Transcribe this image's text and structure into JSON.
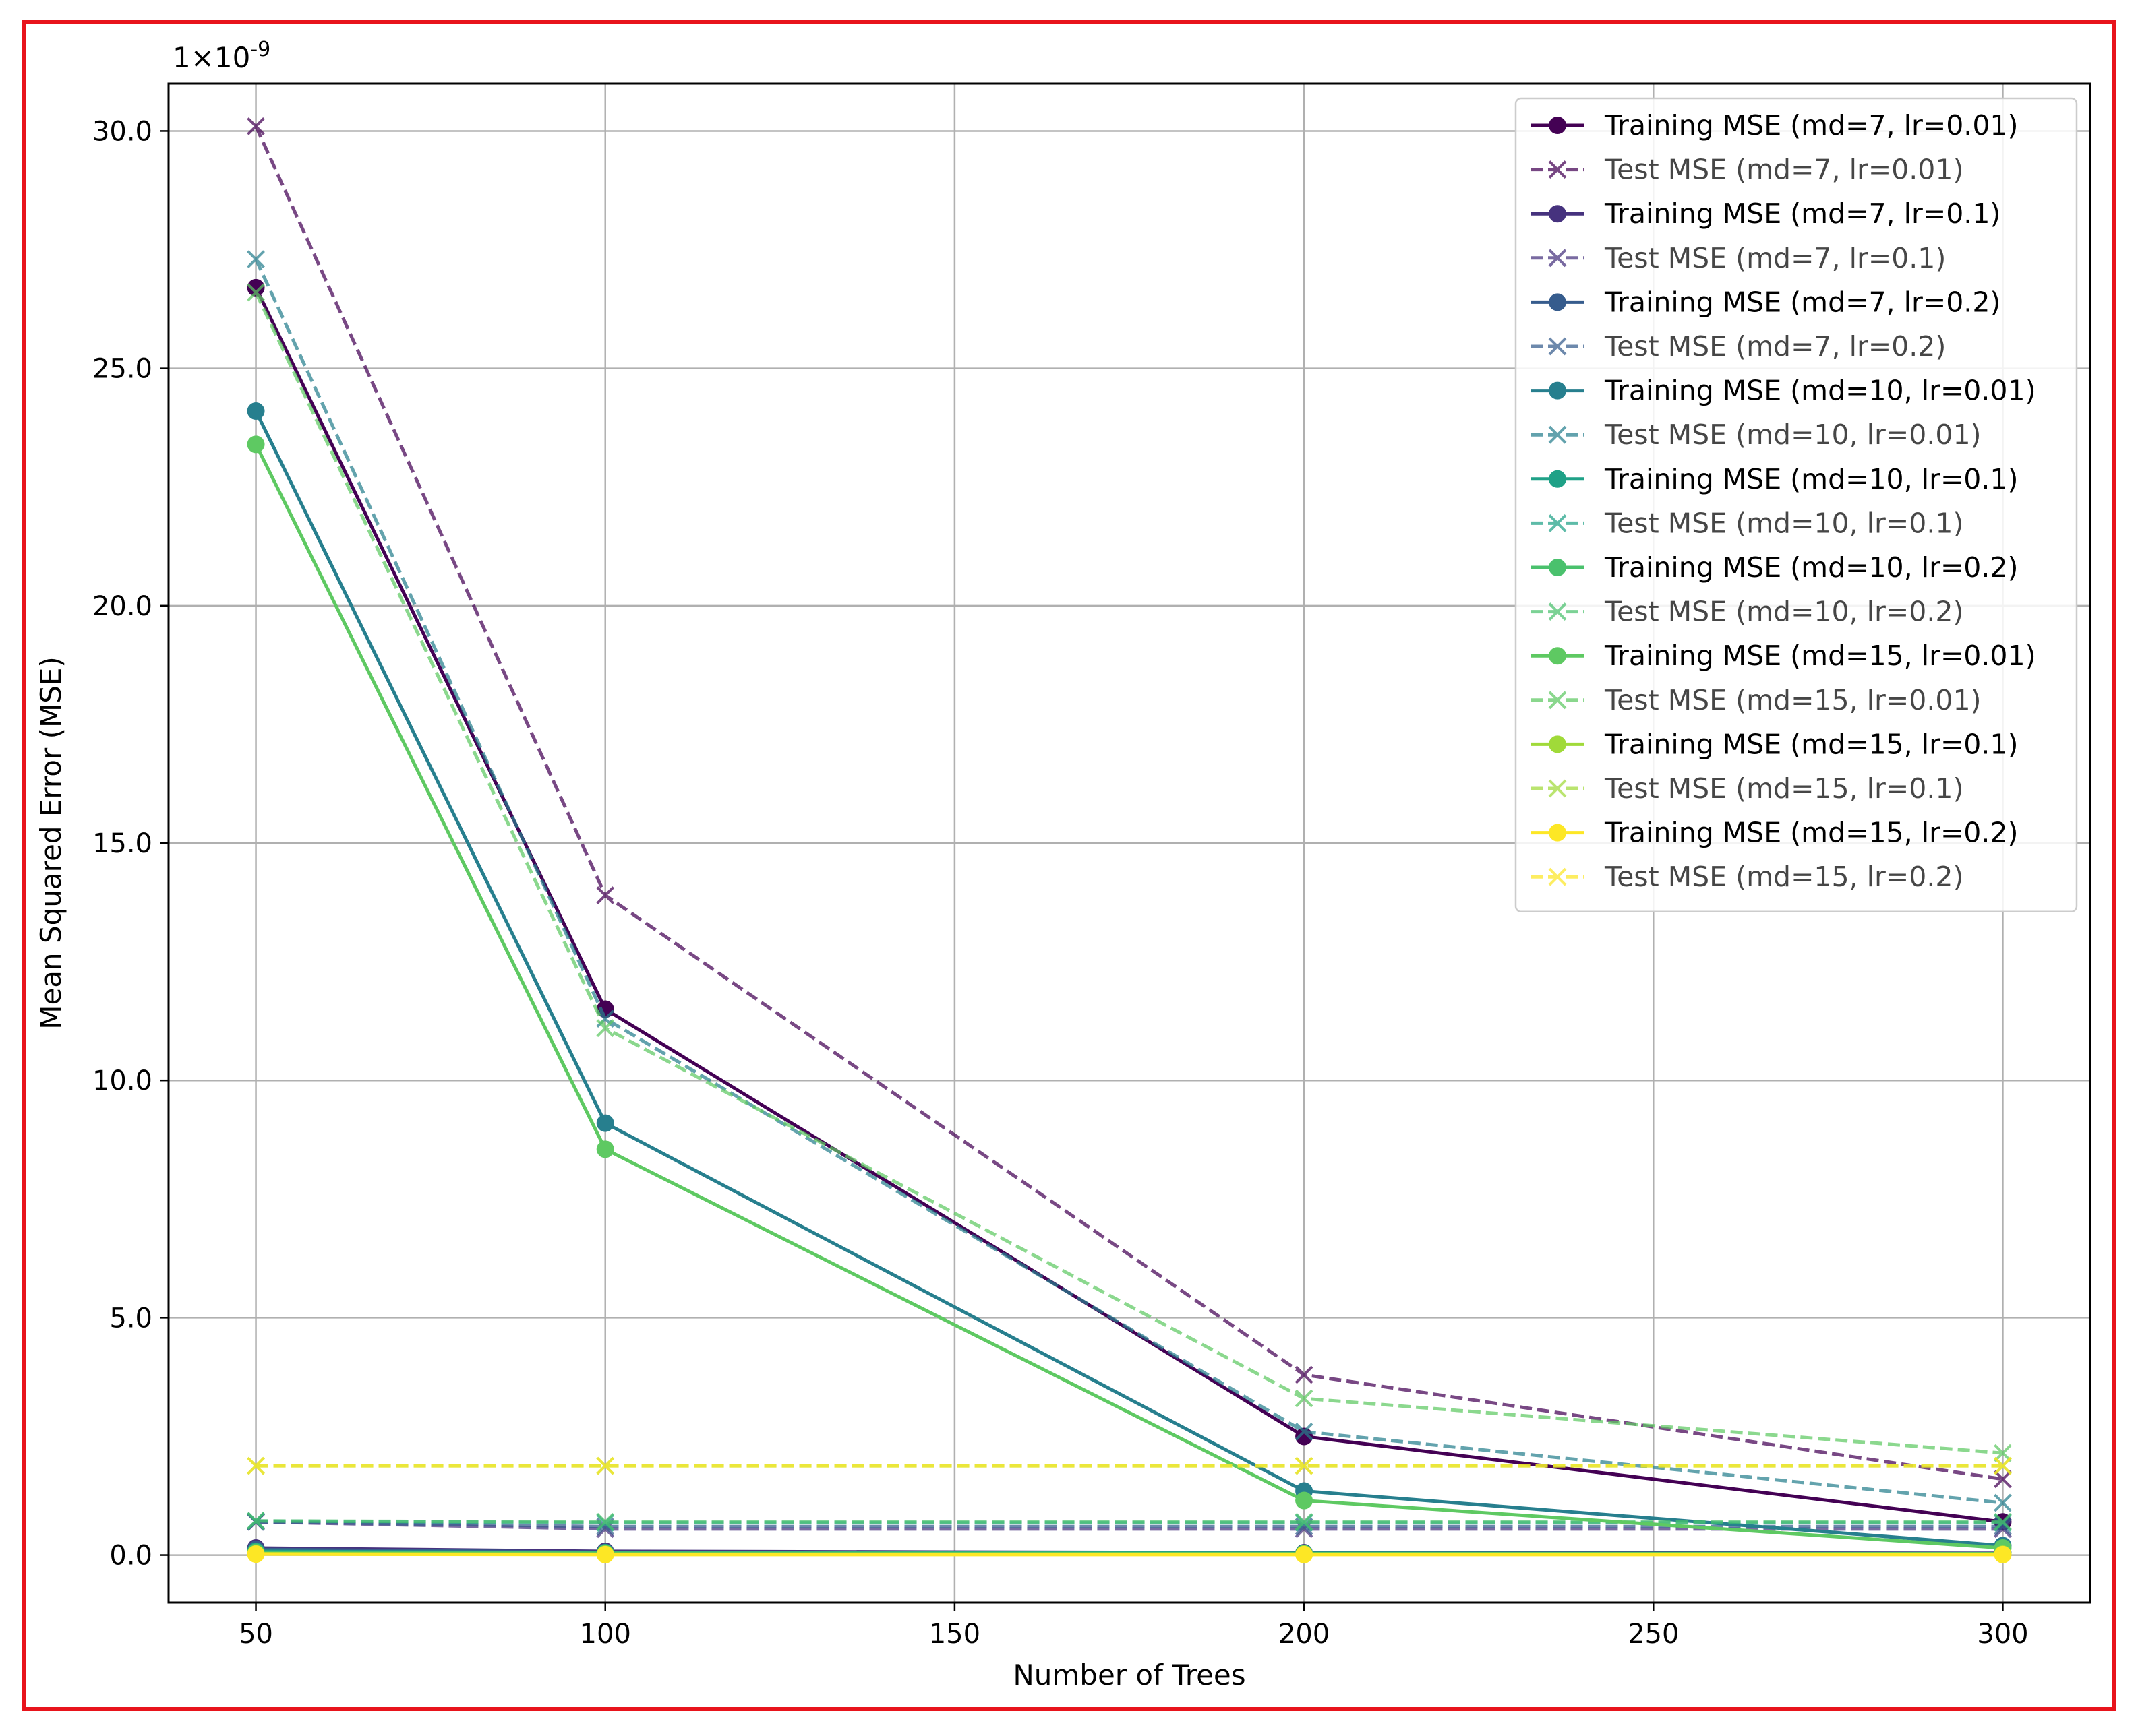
{
  "chart_data": {
    "type": "line",
    "xlabel": "Number of Trees",
    "ylabel": "Mean Squared Error (MSE)",
    "scale_label_base": "1×10",
    "scale_label_exp": "-9",
    "x": [
      50,
      100,
      200,
      300
    ],
    "xlim": [
      37.5,
      312.5
    ],
    "ylim": [
      -1.0,
      31.0
    ],
    "xticks": [
      50,
      100,
      150,
      200,
      250,
      300
    ],
    "xtick_labels": [
      "50",
      "100",
      "150",
      "200",
      "250",
      "300"
    ],
    "yticks": [
      0,
      5,
      10,
      15,
      20,
      25,
      30
    ],
    "ytick_labels": [
      "0.0",
      "5.0",
      "10.0",
      "15.0",
      "20.0",
      "25.0",
      "30.0"
    ],
    "y_scale_factor": "1e-9",
    "grid": true,
    "legend_position": "top-right",
    "series": [
      {
        "name": "Training MSE (md=7, lr=0.01)",
        "color": "#440154",
        "style": "solid",
        "marker": "circle",
        "values": [
          26.7,
          11.5,
          2.5,
          0.7
        ]
      },
      {
        "name": "Test MSE (md=7, lr=0.01)",
        "color": "#440154",
        "style": "dashed",
        "marker": "x",
        "values": [
          30.1,
          13.9,
          3.8,
          1.6
        ]
      },
      {
        "name": "Training MSE (md=7, lr=0.1)",
        "color": "#46327e",
        "style": "solid",
        "marker": "circle",
        "values": [
          0.15,
          0.08,
          0.05,
          0.04
        ]
      },
      {
        "name": "Test MSE (md=7, lr=0.1)",
        "color": "#46327e",
        "style": "dashed",
        "marker": "x",
        "values": [
          0.7,
          0.55,
          0.55,
          0.55
        ]
      },
      {
        "name": "Training MSE (md=7, lr=0.2)",
        "color": "#365c8d",
        "style": "solid",
        "marker": "circle",
        "values": [
          0.12,
          0.06,
          0.04,
          0.03
        ]
      },
      {
        "name": "Test MSE (md=7, lr=0.2)",
        "color": "#365c8d",
        "style": "dashed",
        "marker": "x",
        "values": [
          0.7,
          0.6,
          0.6,
          0.6
        ]
      },
      {
        "name": "Training MSE (md=10, lr=0.01)",
        "color": "#277f8e",
        "style": "solid",
        "marker": "circle",
        "values": [
          24.1,
          9.1,
          1.35,
          0.2
        ]
      },
      {
        "name": "Test MSE (md=10, lr=0.01)",
        "color": "#277f8e",
        "style": "dashed",
        "marker": "x",
        "values": [
          27.3,
          11.3,
          2.6,
          1.1
        ]
      },
      {
        "name": "Training MSE (md=10, lr=0.1)",
        "color": "#1fa187",
        "style": "solid",
        "marker": "circle",
        "values": [
          0.08,
          0.05,
          0.04,
          0.03
        ]
      },
      {
        "name": "Test MSE (md=10, lr=0.1)",
        "color": "#1fa187",
        "style": "dashed",
        "marker": "x",
        "values": [
          0.72,
          0.68,
          0.68,
          0.68
        ]
      },
      {
        "name": "Training MSE (md=10, lr=0.2)",
        "color": "#4ac16d",
        "style": "solid",
        "marker": "circle",
        "values": [
          0.06,
          0.04,
          0.03,
          0.03
        ]
      },
      {
        "name": "Test MSE (md=10, lr=0.2)",
        "color": "#4ac16d",
        "style": "dashed",
        "marker": "x",
        "values": [
          0.72,
          0.7,
          0.7,
          0.7
        ]
      },
      {
        "name": "Training MSE (md=15, lr=0.01)",
        "color": "#5ec962",
        "style": "solid",
        "marker": "circle",
        "values": [
          23.4,
          8.55,
          1.15,
          0.15
        ]
      },
      {
        "name": "Test MSE (md=15, lr=0.01)",
        "color": "#5ec962",
        "style": "dashed",
        "marker": "x",
        "values": [
          26.6,
          11.1,
          3.3,
          2.15
        ]
      },
      {
        "name": "Training MSE (md=15, lr=0.1)",
        "color": "#a0da39",
        "style": "solid",
        "marker": "circle",
        "values": [
          0.03,
          0.02,
          0.02,
          0.02
        ]
      },
      {
        "name": "Test MSE (md=15, lr=0.1)",
        "color": "#a0da39",
        "style": "dashed",
        "marker": "x",
        "values": [
          1.88,
          1.88,
          1.88,
          1.88
        ]
      },
      {
        "name": "Training MSE (md=15, lr=0.2)",
        "color": "#fde725",
        "style": "solid",
        "marker": "circle",
        "values": [
          0.02,
          0.01,
          0.01,
          0.01
        ]
      },
      {
        "name": "Test MSE (md=15, lr=0.2)",
        "color": "#fde725",
        "style": "dashed",
        "marker": "x",
        "values": [
          1.88,
          1.88,
          1.88,
          1.88
        ]
      }
    ]
  },
  "frame": {
    "border_color": "#e8141c"
  }
}
